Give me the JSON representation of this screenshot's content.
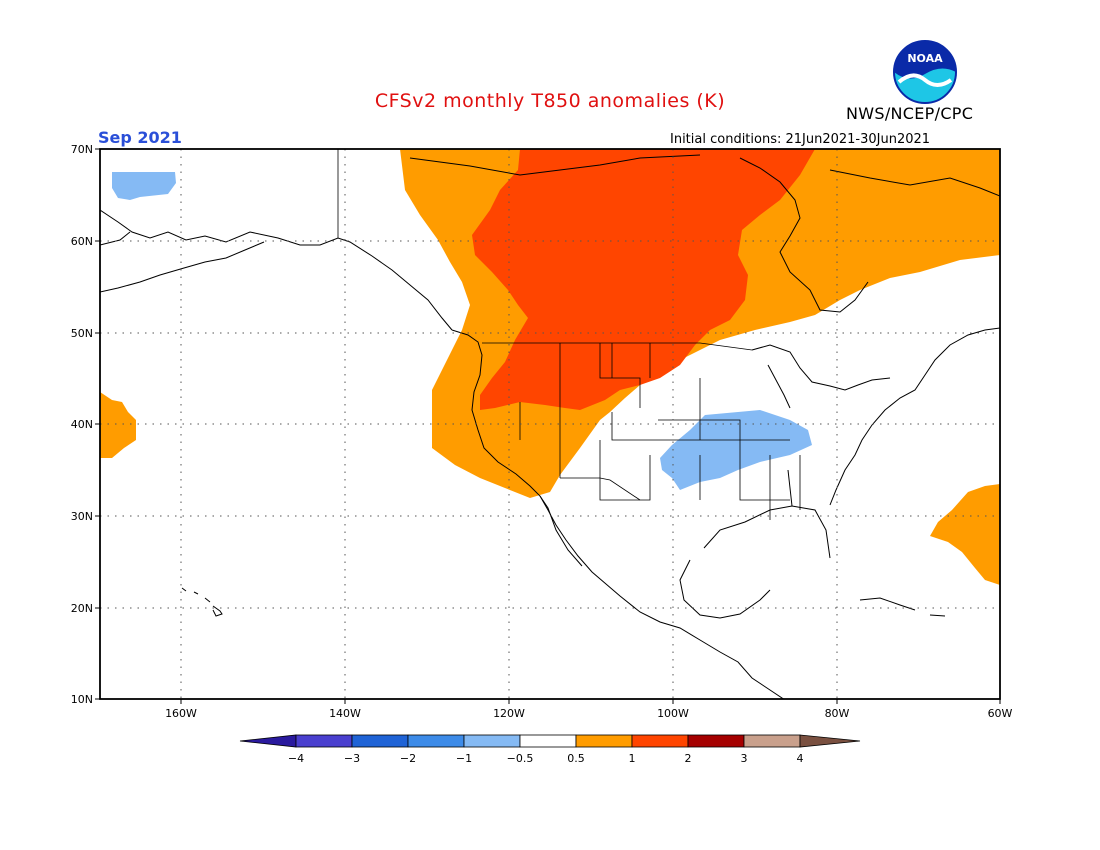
{
  "header": {
    "title": "CFSv2 monthly T850 anomalies (K)",
    "organization": "NWS/NCEP/CPC",
    "logo_text": "NOAA",
    "valid_month": "Sep 2021",
    "initial_conditions": "Initial conditions: 21Jun2021-30Jun2021"
  },
  "axes": {
    "lat_labels": [
      "70N",
      "60N",
      "50N",
      "40N",
      "30N",
      "20N",
      "10N"
    ],
    "lon_labels": [
      "160W",
      "140W",
      "120W",
      "100W",
      "80W",
      "60W"
    ]
  },
  "colorbar": {
    "labels": [
      "-4",
      "-3",
      "-2",
      "-1",
      "-0.5",
      "0.5",
      "1",
      "2",
      "3",
      "4"
    ],
    "colors": [
      "#2a1a9e",
      "#4a3fcf",
      "#1f63d6",
      "#3d8be8",
      "#85baf4",
      "#ffffff",
      "#ff9c00",
      "#ff4500",
      "#a50000",
      "#c9a08c",
      "#7a5040"
    ]
  },
  "anomaly_legend": {
    "cool": "-1 to -0.5",
    "warm": "0.5 to 1",
    "hot": "1 to 2"
  }
}
